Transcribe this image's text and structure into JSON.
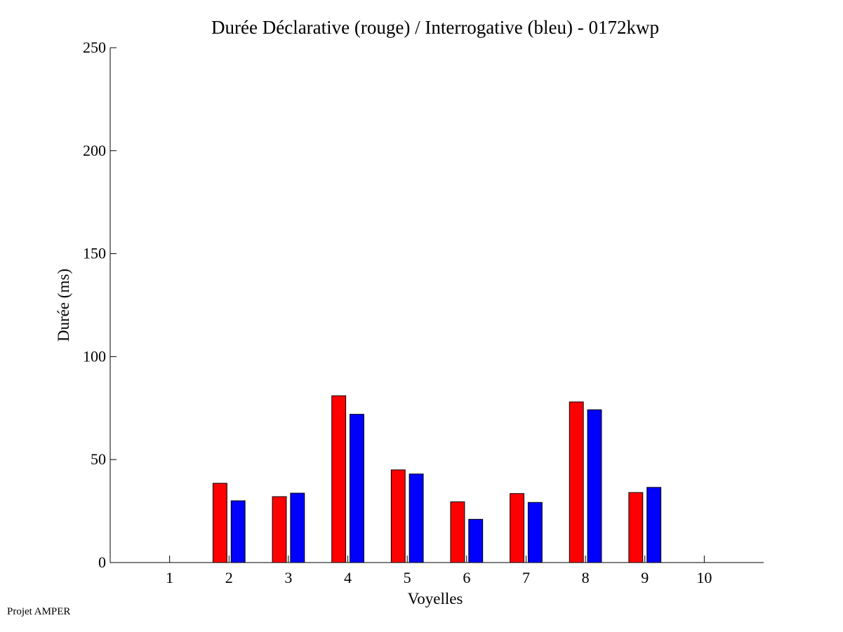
{
  "footer": {
    "text": "Projet AMPER"
  },
  "chart_data": {
    "type": "bar",
    "title": "Durée Déclarative (rouge) / Interrogative (bleu) - 0172kwp",
    "xlabel": "Voyelles",
    "ylabel": "Durée (ms)",
    "categories": [
      "1",
      "2",
      "3",
      "4",
      "5",
      "6",
      "7",
      "8",
      "9",
      "10"
    ],
    "series": [
      {
        "color": "#ff0000",
        "values": [
          null,
          38.5,
          32,
          81,
          45,
          29.5,
          33.5,
          78,
          34,
          null
        ]
      },
      {
        "color": "#0000ff",
        "values": [
          null,
          30,
          33.7,
          72,
          43,
          21,
          29.2,
          74.2,
          36.5,
          null
        ]
      }
    ],
    "ylim": [
      0,
      250
    ],
    "yticks": [
      0,
      50,
      100,
      150,
      200,
      250
    ],
    "xlim": [
      0,
      11
    ],
    "grid": false,
    "legend": "none"
  }
}
